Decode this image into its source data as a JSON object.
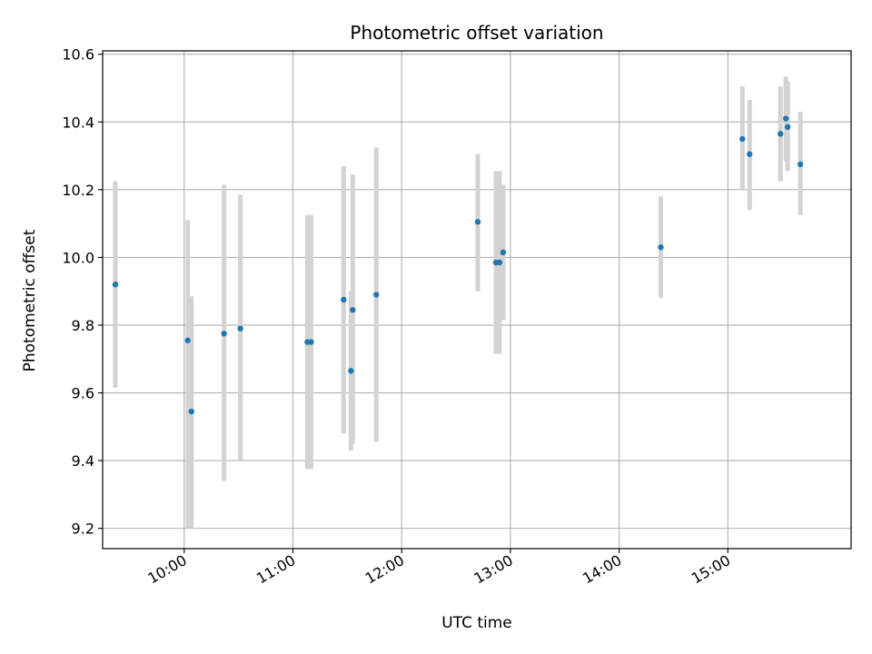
{
  "chart_data": {
    "type": "scatter",
    "title": "Photometric offset variation",
    "xlabel": "UTC time",
    "ylabel": "Photometric offset",
    "x_format": "HH:MM (UTC)",
    "xlim": [
      "09:15",
      "16:08"
    ],
    "ylim": [
      9.14,
      10.61
    ],
    "x_ticks": [
      "10:00",
      "11:00",
      "12:00",
      "13:00",
      "14:00",
      "15:00"
    ],
    "y_ticks": [
      9.2,
      9.4,
      9.6,
      9.8,
      10.0,
      10.2,
      10.4,
      10.6
    ],
    "y_tick_labels": [
      "9.2",
      "9.4",
      "9.6",
      "9.8",
      "10.0",
      "10.2",
      "10.4",
      "10.6"
    ],
    "grid": true,
    "colors": {
      "point": "#1f77b4",
      "errorbar": "#d3d3d3",
      "grid": "#b0b0b0",
      "axes": "#000000"
    },
    "points": [
      {
        "x": "09:22",
        "y": 9.92,
        "err_low": 9.615,
        "err_high": 10.225
      },
      {
        "x": "10:02",
        "y": 9.755,
        "err_low": 9.2,
        "err_high": 10.11
      },
      {
        "x": "10:04",
        "y": 9.545,
        "err_low": 9.2,
        "err_high": 9.885
      },
      {
        "x": "10:22",
        "y": 9.775,
        "err_low": 9.34,
        "err_high": 10.215
      },
      {
        "x": "10:31",
        "y": 9.79,
        "err_low": 9.4,
        "err_high": 10.185
      },
      {
        "x": "11:08",
        "y": 9.75,
        "err_low": 9.375,
        "err_high": 10.125
      },
      {
        "x": "11:10",
        "y": 9.75,
        "err_low": 9.375,
        "err_high": 10.125
      },
      {
        "x": "11:28",
        "y": 9.875,
        "err_low": 9.48,
        "err_high": 10.27
      },
      {
        "x": "11:32",
        "y": 9.665,
        "err_low": 9.43,
        "err_high": 9.9
      },
      {
        "x": "11:33",
        "y": 9.845,
        "err_low": 9.45,
        "err_high": 10.245
      },
      {
        "x": "11:46",
        "y": 9.89,
        "err_low": 9.455,
        "err_high": 10.325
      },
      {
        "x": "12:42",
        "y": 10.105,
        "err_low": 9.9,
        "err_high": 10.305
      },
      {
        "x": "12:52",
        "y": 9.985,
        "err_low": 9.715,
        "err_high": 10.255
      },
      {
        "x": "12:54",
        "y": 9.985,
        "err_low": 9.715,
        "err_high": 10.255
      },
      {
        "x": "12:56",
        "y": 10.015,
        "err_low": 9.815,
        "err_high": 10.215
      },
      {
        "x": "14:23",
        "y": 10.03,
        "err_low": 9.88,
        "err_high": 10.18
      },
      {
        "x": "15:08",
        "y": 10.35,
        "err_low": 10.2,
        "err_high": 10.505
      },
      {
        "x": "15:12",
        "y": 10.305,
        "err_low": 10.14,
        "err_high": 10.465
      },
      {
        "x": "15:29",
        "y": 10.365,
        "err_low": 10.225,
        "err_high": 10.505
      },
      {
        "x": "15:32",
        "y": 10.41,
        "err_low": 10.285,
        "err_high": 10.535
      },
      {
        "x": "15:33",
        "y": 10.385,
        "err_low": 10.255,
        "err_high": 10.52
      },
      {
        "x": "15:40",
        "y": 10.275,
        "err_low": 10.125,
        "err_high": 10.43
      }
    ]
  }
}
